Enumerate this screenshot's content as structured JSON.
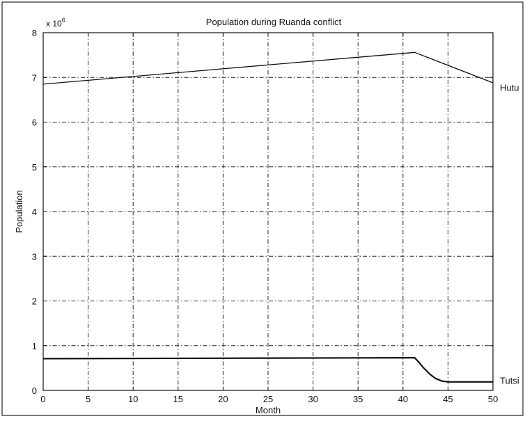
{
  "chart_data": {
    "type": "line",
    "title": "Population during Ruanda conflict",
    "xlabel": "Month",
    "ylabel": "Population",
    "y_multiplier_label": {
      "base": "x 10",
      "exp": "6"
    },
    "xlim": [
      0,
      50
    ],
    "ylim": [
      0,
      8
    ],
    "x_ticks": [
      0,
      5,
      10,
      15,
      20,
      25,
      30,
      35,
      40,
      45,
      50
    ],
    "y_ticks": [
      0,
      1,
      2,
      3,
      4,
      5,
      6,
      7,
      8
    ],
    "grid": true,
    "series": [
      {
        "name": "Hutu",
        "x": [
          0,
          41.3,
          50
        ],
        "y": [
          6.85,
          7.56,
          6.88
        ]
      },
      {
        "name": "Tutsi",
        "x": [
          0,
          41,
          41.3,
          41.8,
          42.3,
          43,
          43.6,
          44.3,
          45,
          50
        ],
        "y": [
          0.71,
          0.73,
          0.73,
          0.62,
          0.5,
          0.36,
          0.27,
          0.21,
          0.19,
          0.19
        ]
      }
    ]
  }
}
